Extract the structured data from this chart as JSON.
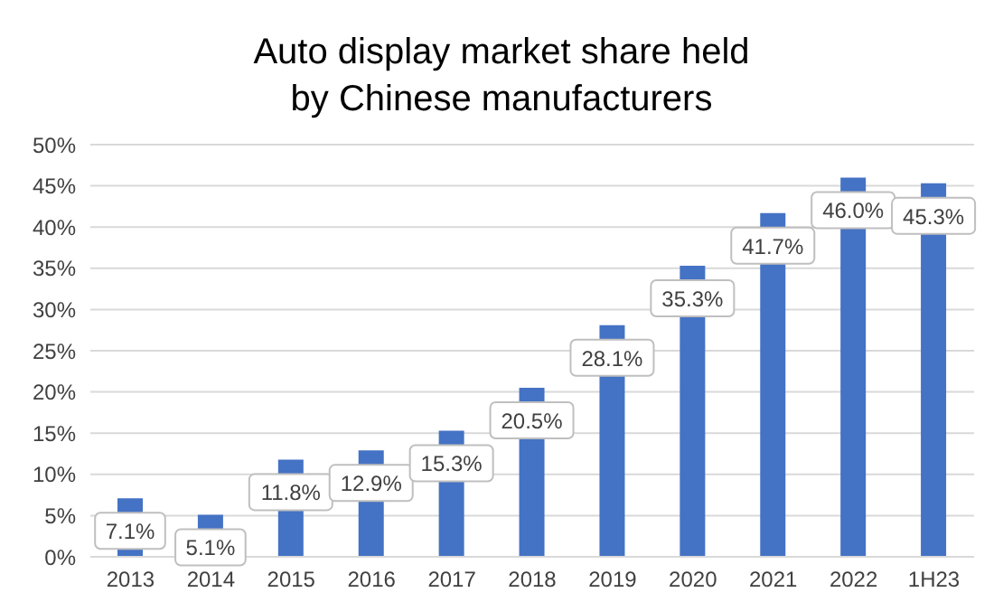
{
  "chart_data": {
    "type": "bar",
    "title": "Auto display market share held by Chinese manufacturers",
    "categories": [
      "2013",
      "2014",
      "2015",
      "2016",
      "2017",
      "2018",
      "2019",
      "2020",
      "2021",
      "2022",
      "1H23"
    ],
    "values": [
      7.1,
      5.1,
      11.8,
      12.9,
      15.3,
      20.5,
      28.1,
      35.3,
      41.7,
      46.0,
      45.3
    ],
    "value_labels": [
      "7.1%",
      "5.1%",
      "11.8%",
      "12.9%",
      "15.3%",
      "20.5%",
      "28.1%",
      "35.3%",
      "41.7%",
      "46.0%",
      "45.3%"
    ],
    "color": "#4472c4",
    "ylim": [
      0,
      50
    ],
    "yticks": [
      {
        "value": 0,
        "label": "0%"
      },
      {
        "value": 5,
        "label": "5%"
      },
      {
        "value": 10,
        "label": "10%"
      },
      {
        "value": 15,
        "label": "15%"
      },
      {
        "value": 20,
        "label": "20%"
      },
      {
        "value": 25,
        "label": "25%"
      },
      {
        "value": 30,
        "label": "30%"
      },
      {
        "value": 35,
        "label": "35%"
      },
      {
        "value": 40,
        "label": "40%"
      },
      {
        "value": 45,
        "label": "45%"
      },
      {
        "value": 50,
        "label": "50%"
      }
    ],
    "grid": "y"
  }
}
